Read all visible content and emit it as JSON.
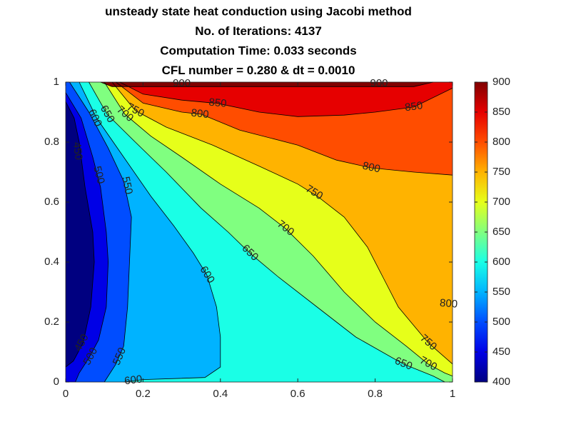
{
  "chart_data": {
    "type": "contour",
    "title": [
      "unsteady state heat conduction using Jacobi method",
      "No. of Iterations: 4137",
      "Computation Time: 0.033 seconds",
      "CFL number = 0.280 & dt = 0.0010"
    ],
    "xlim": [
      0,
      1
    ],
    "ylim": [
      0,
      1
    ],
    "xticks": [
      0,
      0.2,
      0.4,
      0.6,
      0.8,
      1
    ],
    "yticks": [
      0,
      0.2,
      0.4,
      0.6,
      0.8,
      1
    ],
    "clim": [
      400,
      900
    ],
    "cticks": [
      400,
      450,
      500,
      550,
      600,
      650,
      700,
      750,
      800,
      850,
      900
    ],
    "colors": [
      "#000080",
      "#0000e6",
      "#004dff",
      "#00b3ff",
      "#1affe6",
      "#80ff80",
      "#e6ff1a",
      "#ffb300",
      "#ff4d00",
      "#e60000",
      "#800000"
    ],
    "contours": [
      {
        "level": 450,
        "x": [
          0,
          0.022,
          0.035,
          0.05,
          0.07,
          0.074,
          0.065,
          0.045,
          0.02,
          0
        ],
        "y": [
          0.935,
          0.88,
          0.8,
          0.65,
          0.5,
          0.4,
          0.25,
          0.13,
          0.07,
          0.05
        ],
        "label_x": [
          0.03,
          0.042
        ],
        "label_y": [
          0.77,
          0.13
        ]
      },
      {
        "level": 500,
        "x": [
          0,
          0.04,
          0.07,
          0.09,
          0.105,
          0.11,
          0.105,
          0.085,
          0.06,
          0.035,
          0.025
        ],
        "y": [
          0.965,
          0.88,
          0.75,
          0.65,
          0.5,
          0.4,
          0.25,
          0.14,
          0.08,
          0.03,
          0
        ],
        "label_x": [
          0.085,
          0.065
        ],
        "label_y": [
          0.69,
          0.085
        ]
      },
      {
        "level": 550,
        "x": [
          0.01,
          0.06,
          0.11,
          0.15,
          0.17,
          0.165,
          0.16,
          0.15,
          0.13,
          0.1
        ],
        "y": [
          1,
          0.9,
          0.78,
          0.67,
          0.55,
          0.4,
          0.25,
          0.12,
          0.06,
          0
        ],
        "label_x": [
          0.158,
          0.14
        ],
        "label_y": [
          0.655,
          0.085
        ]
      },
      {
        "level": 600,
        "x": [
          0.035,
          0.08,
          0.15,
          0.22,
          0.28,
          0.33,
          0.365,
          0.39,
          0.4,
          0.4,
          0.36,
          0.2,
          0.15
        ],
        "y": [
          1,
          0.88,
          0.75,
          0.62,
          0.52,
          0.43,
          0.357,
          0.25,
          0.15,
          0.05,
          0.015,
          0.008,
          0
        ],
        "label_x": [
          0.075,
          0.365,
          0.175
        ],
        "label_y": [
          0.88,
          0.357,
          0.005
        ]
      },
      {
        "level": 650,
        "x": [
          0.06,
          0.107,
          0.18,
          0.26,
          0.35,
          0.42,
          0.476,
          0.55,
          0.65,
          0.75,
          0.873,
          0.95,
          0.98
        ],
        "y": [
          1,
          0.893,
          0.8,
          0.7,
          0.58,
          0.5,
          0.43,
          0.35,
          0.25,
          0.15,
          0.06,
          0.02,
          0
        ],
        "label_x": [
          0.107,
          0.476,
          0.873
        ],
        "label_y": [
          0.893,
          0.43,
          0.06
        ]
      },
      {
        "level": 700,
        "x": [
          0.1,
          0.153,
          0.22,
          0.3,
          0.4,
          0.5,
          0.568,
          0.64,
          0.72,
          0.8,
          0.88,
          0.937,
          0.98,
          1
        ],
        "y": [
          1,
          0.893,
          0.82,
          0.75,
          0.66,
          0.58,
          0.512,
          0.42,
          0.3,
          0.2,
          0.12,
          0.06,
          0.03,
          0.02
        ],
        "label_x": [
          0.153,
          0.568,
          0.937
        ],
        "label_y": [
          0.893,
          0.512,
          0.06
        ]
      },
      {
        "level": 750,
        "x": [
          0.12,
          0.18,
          0.26,
          0.38,
          0.5,
          0.6,
          0.65,
          0.72,
          0.78,
          0.82,
          0.86,
          0.937,
          1
        ],
        "y": [
          1,
          0.905,
          0.85,
          0.79,
          0.72,
          0.66,
          0.62,
          0.55,
          0.45,
          0.35,
          0.25,
          0.131,
          0.06
        ],
        "label_x": [
          0.18,
          0.642,
          0.937
        ],
        "label_y": [
          0.905,
          0.631,
          0.131
        ]
      },
      {
        "level": 800,
        "x": [
          0.13,
          0.2,
          0.3,
          0.35,
          0.45,
          0.6,
          0.7,
          0.79,
          0.9,
          1
        ],
        "y": [
          1,
          0.93,
          0.9,
          0.893,
          0.84,
          0.79,
          0.74,
          0.714,
          0.7,
          0.69
        ],
        "label_x": [
          0.347,
          0.79,
          0.99
        ],
        "label_y": [
          0.893,
          0.714,
          0.26
        ]
      },
      {
        "level": 850,
        "x": [
          0.14,
          0.2,
          0.3,
          0.393,
          0.5,
          0.6,
          0.72,
          0.8,
          0.9,
          1
        ],
        "y": [
          1,
          0.96,
          0.94,
          0.929,
          0.9,
          0.885,
          0.89,
          0.9,
          0.917,
          0.98
        ],
        "label_x": [
          0.393,
          0.9
        ],
        "label_y": [
          0.929,
          0.917
        ]
      },
      {
        "level": 900,
        "x": [
          0.09,
          0.12,
          0.5,
          0.9,
          0.95
        ],
        "y": [
          1,
          0.985,
          0.985,
          0.985,
          1
        ],
        "label_x": [
          0.3,
          0.81
        ],
        "label_y": [
          0.995,
          0.995
        ]
      }
    ]
  }
}
